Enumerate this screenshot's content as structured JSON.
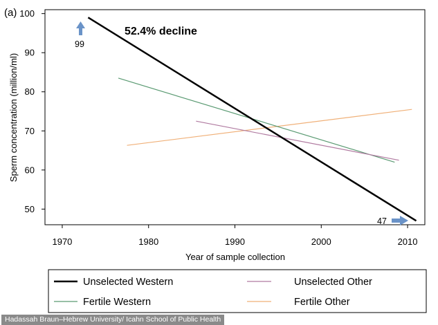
{
  "panel_label": "(a)",
  "credit": "Hadassah Braun–Hebrew University/ Icahn School of Public Health",
  "annotations": {
    "decline": "52.4% decline",
    "start_value": "99",
    "end_value": "47"
  },
  "colors": {
    "arrow": "#6a93c8"
  },
  "chart_data": {
    "type": "line",
    "title": "",
    "xlabel": "Year of sample collection",
    "ylabel": "Sperm concentration (million/ml)",
    "xlim": [
      1968,
      2012
    ],
    "ylim": [
      46,
      101
    ],
    "xticks": [
      1970,
      1980,
      1990,
      2000,
      2010
    ],
    "yticks": [
      50,
      60,
      70,
      80,
      90,
      100
    ],
    "grid": false,
    "legend_position": "bottom",
    "series": [
      {
        "name": "Unselected Western",
        "color": "#000000",
        "x": [
          1973,
          2011
        ],
        "y": [
          99,
          47
        ]
      },
      {
        "name": "Unselected Other",
        "color": "#b07aa0",
        "x": [
          1985.5,
          2009
        ],
        "y": [
          72.5,
          62.5
        ]
      },
      {
        "name": "Fertile Western",
        "color": "#5a9a72",
        "x": [
          1976.5,
          2008.5
        ],
        "y": [
          83.5,
          62
        ]
      },
      {
        "name": "Fertile Other",
        "color": "#f0b078",
        "x": [
          1977.5,
          2010.5
        ],
        "y": [
          66.3,
          75.5
        ]
      }
    ]
  }
}
